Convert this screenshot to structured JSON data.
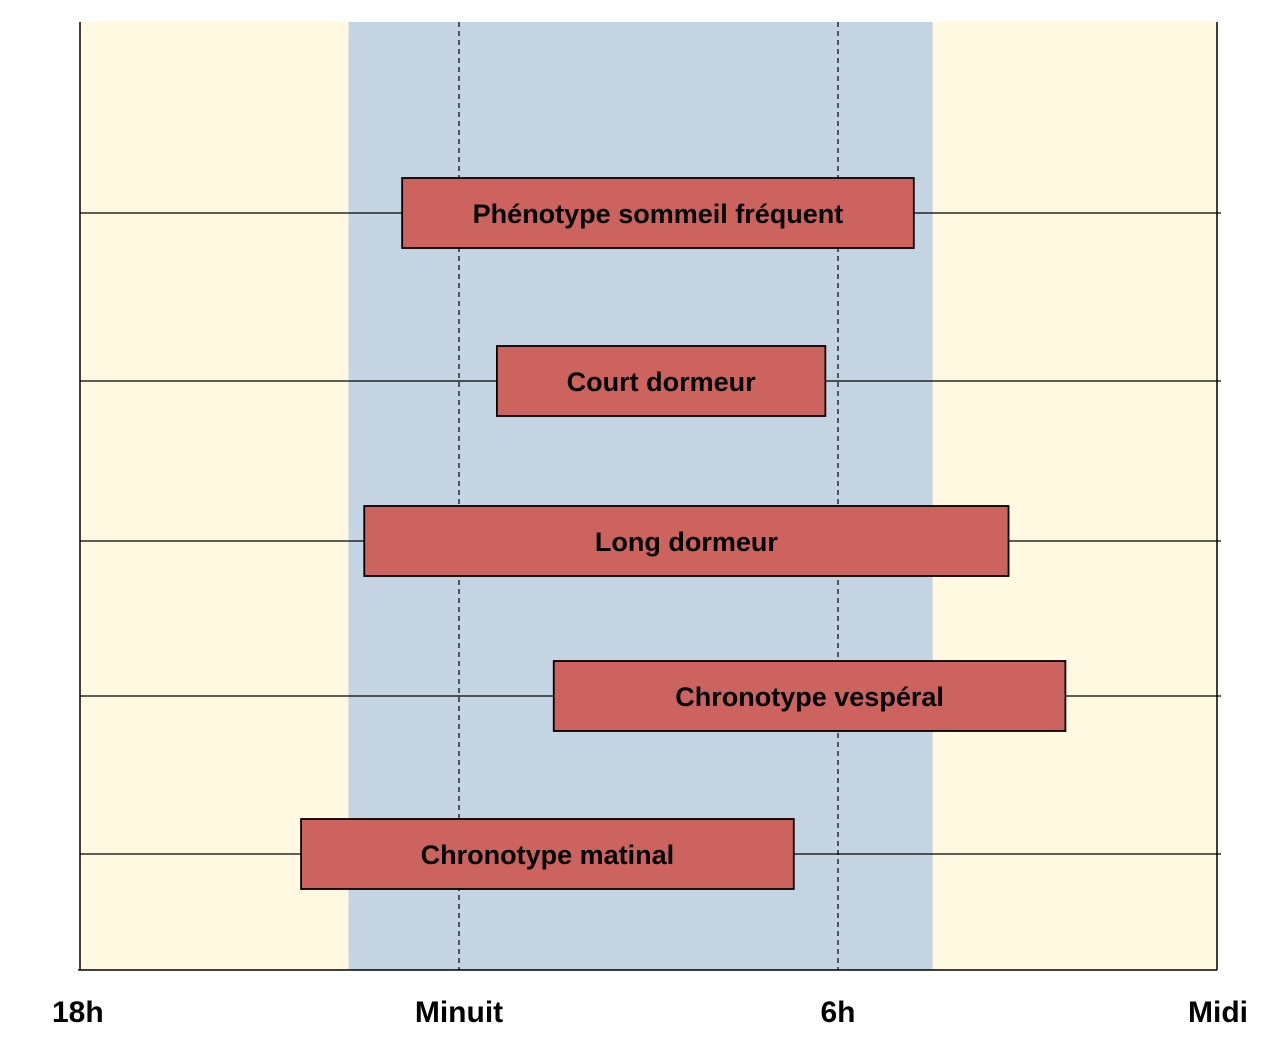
{
  "chart_data": {
    "type": "bar",
    "orientation": "horizontal",
    "title": "",
    "xlabel": "",
    "ylabel": "",
    "x_unit": "hours since 18h",
    "xlim": [
      0,
      18
    ],
    "grid": false,
    "x_ticks": [
      {
        "value": 0,
        "label": "18h"
      },
      {
        "value": 6,
        "label": "Minuit"
      },
      {
        "value": 12,
        "label": "6h"
      },
      {
        "value": 18,
        "label": "Midi"
      }
    ],
    "background_bands": [
      {
        "start": 0,
        "end": 4.25,
        "color": "#fff9e1"
      },
      {
        "start": 4.25,
        "end": 13.5,
        "color": "#c5d4e2"
      },
      {
        "start": 13.5,
        "end": 18,
        "color": "#fff9e1"
      }
    ],
    "reference_lines": [
      6,
      12
    ],
    "bar_color": "#cd635f",
    "bars": [
      {
        "label": "Phénotype sommeil fréquent",
        "start": 5.1,
        "end": 13.2
      },
      {
        "label": "Court dormeur",
        "start": 6.6,
        "end": 11.8
      },
      {
        "label": "Long dormeur",
        "start": 4.5,
        "end": 14.7
      },
      {
        "label": "Chronotype vespéral",
        "start": 7.5,
        "end": 15.6
      },
      {
        "label": "Chronotype matinal",
        "start": 3.5,
        "end": 11.3
      }
    ]
  }
}
